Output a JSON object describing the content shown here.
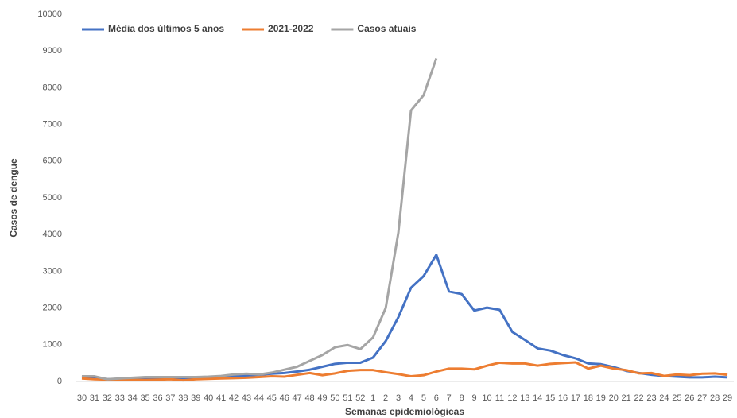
{
  "chart_data": {
    "type": "line",
    "x_label": "Semanas epidemiológicas",
    "y_label": "Casos de dengue",
    "categories": [
      "30",
      "31",
      "32",
      "33",
      "34",
      "35",
      "36",
      "37",
      "38",
      "39",
      "40",
      "41",
      "42",
      "43",
      "44",
      "45",
      "46",
      "47",
      "48",
      "49",
      "50",
      "51",
      "52",
      "1",
      "2",
      "3",
      "4",
      "5",
      "6",
      "7",
      "8",
      "9",
      "10",
      "11",
      "12",
      "13",
      "14",
      "15",
      "16",
      "17",
      "18",
      "19",
      "20",
      "21",
      "22",
      "23",
      "24",
      "25",
      "26",
      "27",
      "28",
      "29"
    ],
    "series": [
      {
        "name": "Média dos últimos 5 anos",
        "color": "#4472c4",
        "values": [
          120,
          120,
          60,
          70,
          80,
          90,
          100,
          100,
          90,
          100,
          110,
          120,
          140,
          160,
          180,
          210,
          230,
          270,
          320,
          400,
          480,
          510,
          510,
          650,
          1100,
          1750,
          2550,
          2870,
          3450,
          2450,
          2380,
          1930,
          2010,
          1950,
          1350,
          1130,
          900,
          840,
          720,
          630,
          490,
          470,
          390,
          290,
          230,
          180,
          150,
          130,
          110,
          110,
          130,
          110
        ]
      },
      {
        "name": "2021-2022",
        "color": "#ed7d31",
        "values": [
          80,
          60,
          50,
          50,
          40,
          40,
          50,
          60,
          30,
          60,
          70,
          80,
          90,
          100,
          120,
          140,
          130,
          180,
          230,
          170,
          220,
          290,
          310,
          310,
          250,
          200,
          140,
          170,
          270,
          350,
          350,
          330,
          430,
          510,
          490,
          490,
          430,
          480,
          500,
          520,
          350,
          430,
          350,
          310,
          220,
          230,
          150,
          190,
          170,
          210,
          220,
          180
        ]
      },
      {
        "name": "Casos atuais",
        "color": "#a5a5a5",
        "values": [
          140,
          140,
          60,
          80,
          100,
          120,
          120,
          120,
          120,
          120,
          130,
          150,
          190,
          210,
          190,
          240,
          320,
          400,
          560,
          720,
          930,
          990,
          880,
          1200,
          2000,
          4050,
          7380,
          7800,
          8800,
          null,
          null,
          null,
          null,
          null,
          null,
          null,
          null,
          null,
          null,
          null,
          null,
          null,
          null,
          null,
          null,
          null,
          null,
          null,
          null,
          null,
          null,
          null
        ]
      }
    ],
    "ylim": [
      0,
      10000
    ],
    "yticks": [
      0,
      1000,
      2000,
      3000,
      4000,
      5000,
      6000,
      7000,
      8000,
      9000,
      10000
    ],
    "grid": false,
    "legend": "top-left"
  }
}
